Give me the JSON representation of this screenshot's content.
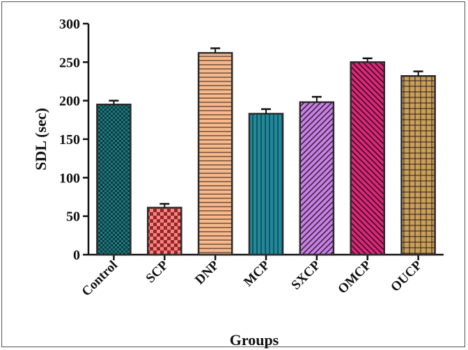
{
  "chart_data": {
    "type": "bar",
    "xlabel": "Groups",
    "ylabel": "SDL (sec)",
    "ylim": [
      0,
      300
    ],
    "yticks": [
      0,
      50,
      100,
      150,
      200,
      250,
      300
    ],
    "categories": [
      "Control",
      "SCP",
      "DNP",
      "MCP",
      "SXCP",
      "OMCP",
      "OUCP"
    ],
    "values": [
      195,
      61,
      262,
      183,
      198,
      250,
      232
    ],
    "errors": [
      5,
      5,
      6,
      6,
      7,
      5,
      6
    ],
    "colors": [
      "#1f7a80",
      "#ff7f7f",
      "#f7b98a",
      "#1f8a9c",
      "#c77ee8",
      "#d8287a",
      "#c9a05a"
    ],
    "patterns": [
      "checker",
      "checker-large",
      "horizontal",
      "vertical",
      "diagonal-up",
      "diagonal-down",
      "grid"
    ],
    "legend": "none",
    "grid": false
  }
}
